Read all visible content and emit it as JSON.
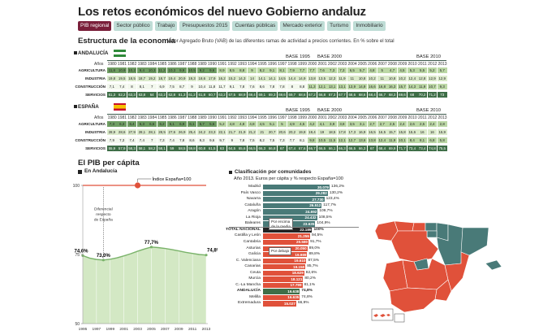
{
  "title": "Los retos económicos del nuevo Gobierno andaluz",
  "tabs": [
    "PIB regional",
    "Sector público",
    "Trabajo",
    "Presupuestos 2015",
    "Cuentas públicas",
    "Mercado exterior",
    "Turismo",
    "Inmobiliario"
  ],
  "active_tab": 0,
  "vab": {
    "title": "Estructura de la economía",
    "subtitle": "Valor Agregado Bruto (VAB) de las diferentes ramas de actividad a precios corrientes. En % sobre el total",
    "years_label": "Años",
    "base_labels": [
      "BASE 1995",
      "BASE 2000",
      "BASE 2010"
    ],
    "years": [
      "1980",
      "1981",
      "1982",
      "1983",
      "1984",
      "1985",
      "1986",
      "1987",
      "1988",
      "1989",
      "1990",
      "1991",
      "1992",
      "1993",
      "1994",
      "1995",
      "1996",
      "1997",
      "1998",
      "1999",
      "2000",
      "2001",
      "2002",
      "2003",
      "2004",
      "2005",
      "2006",
      "2007",
      "2008",
      "2009",
      "2010",
      "2011",
      "2012",
      "2013"
    ],
    "regions": [
      {
        "name": "ANDALUCÍA",
        "rows": [
          {
            "label": "AGRICULTURA",
            "values": [
              "11,8",
              "10,9",
              "10,2",
              "9,4",
              "10,3",
              "11,2",
              "10,3",
              "9,9",
              "10,5",
              "9,2",
              "9,6",
              "8,9",
              "8,5",
              "8,8",
              "9",
              "8,2",
              "9,1",
              "8,1",
              "7,9",
              "7,7",
              "7,7",
              "7,6",
              "7,3",
              "7,3",
              "6,5",
              "5,7",
              "4,8",
              "5",
              "4,7",
              "4,5",
              "5,3",
              "5,5",
              "5,2",
              "5,7"
            ]
          },
          {
            "label": "INDUSTRIA",
            "values": [
              "19,8",
              "19,5",
              "18,5",
              "18,7",
              "19,2",
              "18,7",
              "19,4",
              "20,9",
              "19,3",
              "18,6",
              "17,9",
              "16,2",
              "15,2",
              "14,3",
              "14",
              "14,1",
              "14,1",
              "14,5",
              "14,4",
              "14,9",
              "13,8",
              "13,5",
              "12,3",
              "11,9",
              "11",
              "10,8",
              "10,2",
              "11",
              "10,8",
              "10,2",
              "12,4",
              "12,8",
              "12,9",
              "12,9"
            ]
          },
          {
            "label": "CONSTRUCCIÓN",
            "values": [
              "7,1",
              "7,4",
              "8",
              "8,1",
              "7",
              "6,9",
              "7,5",
              "8,7",
              "9",
              "10,4",
              "11,8",
              "11,7",
              "9,1",
              "7,8",
              "7,6",
              "8,6",
              "7,8",
              "7,8",
              "8",
              "8,8",
              "11,3",
              "12,1",
              "13,1",
              "13,1",
              "13,9",
              "14,9",
              "16,6",
              "16,8",
              "16,3",
              "15,7",
              "14,3",
              "11,9",
              "10,7",
              "9,3"
            ]
          },
          {
            "label": "SERVICIOS",
            "values": [
              "61,3",
              "62,2",
              "63,3",
              "63,8",
              "64",
              "63,2",
              "62,8",
              "61,3",
              "61,2",
              "61,8",
              "60,7",
              "63,2",
              "67,5",
              "68,9",
              "69,4",
              "69,1",
              "69,3",
              "69,6",
              "69,7",
              "68,6",
              "67,2",
              "66,8",
              "67,3",
              "67,7",
              "68,6",
              "68,6",
              "68,4",
              "66,7",
              "68,3",
              "69,6",
              "68",
              "70,2",
              "71,2",
              "73"
            ]
          }
        ]
      },
      {
        "name": "ESPAÑA",
        "rows": [
          {
            "label": "AGRICULTURA",
            "values": [
              "7,3",
              "6,3",
              "6,4",
              "6,3",
              "6,6",
              "6,2",
              "6,1",
              "6,9",
              "6,1",
              "5,7",
              "5,6",
              "5,2",
              "4,8",
              "4,8",
              "4,8",
              "4,5",
              "5,1",
              "5",
              "4,9",
              "4,5",
              "4,2",
              "4,1",
              "3,9",
              "3,8",
              "3,5",
              "3,1",
              "2,7",
              "2,7",
              "2,5",
              "2,4",
              "2,6",
              "2,5",
              "2,4",
              "2,8"
            ]
          },
          {
            "label": "INDUSTRIA",
            "values": [
              "28,9",
              "28,6",
              "27,9",
              "28,1",
              "28,1",
              "28,5",
              "27,6",
              "26,9",
              "25,4",
              "24,2",
              "23,3",
              "22,1",
              "21,7",
              "21,9",
              "21,2",
              "21",
              "20,7",
              "20,6",
              "20,2",
              "19,8",
              "19,4",
              "19",
              "18,5",
              "17,8",
              "17,3",
              "16,9",
              "16,5",
              "16,5",
              "15,7",
              "15,8",
              "15,6",
              "16",
              "16",
              "15,9"
            ]
          },
          {
            "label": "CONSTRUCCIÓN",
            "values": [
              "7,9",
              "7,3",
              "7,4",
              "7,4",
              "7",
              "7,3",
              "7,4",
              "7,8",
              "8,6",
              "9,3",
              "9,6",
              "9,7",
              "9",
              "7,8",
              "7,5",
              "8,2",
              "7,5",
              "7,3",
              "7,7",
              "8,1",
              "9,8",
              "10,5",
              "11,5",
              "12,1",
              "12,7",
              "13,6",
              "13,8",
              "12,4",
              "11,9",
              "10,1",
              "8,4",
              "8,1",
              "6,8",
              "5,8"
            ]
          },
          {
            "label": "SERVICIOS",
            "values": [
              "55,9",
              "57,9",
              "58,3",
              "58,1",
              "58,2",
              "58,1",
              "59",
              "58,5",
              "59,8",
              "60,8",
              "61,5",
              "63",
              "64,5",
              "65,6",
              "66,5",
              "66,3",
              "66,8",
              "67",
              "67,4",
              "67,6",
              "66,7",
              "66,5",
              "66,1",
              "66,3",
              "66,5",
              "66,3",
              "67",
              "68,4",
              "69,9",
              "71,7",
              "73,4",
              "73,4",
              "74,8",
              "75,5"
            ]
          }
        ]
      }
    ]
  },
  "pib": {
    "title": "El PIB per cápita",
    "subtitle": "En Andalucía",
    "legend_index": "Índice España=100",
    "annotation": "Diferencial respecto de España"
  },
  "ccaa": {
    "title": "Clasificación por comunidades",
    "subtitle": "Año 2013. Euros per cápita y % respecto España=100",
    "note_above": "Por encima de la media",
    "note_below": "Por debajo"
  },
  "colors": {
    "tab_active": "#7a1f3a",
    "tab": "#bfddd6",
    "header_bar": "#3d5a4c",
    "dark_green": "#3e6e47",
    "mid_green": "#6f9e63",
    "light_green": "#bcd8a6",
    "pale_green": "#dcebcc",
    "teal": "#497a78",
    "orange_red": "#e0513a",
    "andalucia_bar": "#3e6e47",
    "national_bar": "#222222",
    "pib_area": "#d3e8c4",
    "pib_line": "#7ab36a",
    "pib_ref": "#e0513a"
  },
  "chart_data": [
    {
      "type": "area",
      "title": "El PIB per cápita",
      "subtitle": "En Andalucía",
      "x": [
        1995,
        1996,
        1997,
        1998,
        1999,
        2000,
        2001,
        2002,
        2003,
        2004,
        2005,
        2006,
        2007,
        2008,
        2009,
        2010,
        2011,
        2012,
        2013
      ],
      "values": [
        74.6,
        73.7,
        73.2,
        73.0,
        73.3,
        73.8,
        74.5,
        75.3,
        76.2,
        77.0,
        77.7,
        77.5,
        77.2,
        76.8,
        76.3,
        75.8,
        75.4,
        75.0,
        74.8
      ],
      "point_labels": {
        "1995": "74,6%",
        "1998": "73,0%",
        "2005": "77,7%",
        "2013": "74,8%"
      },
      "reference_line": 100,
      "reference_label": "Índice España=100",
      "ylim": [
        50,
        100
      ],
      "yticks": [
        50,
        75,
        100
      ],
      "xticks": [
        "1995",
        "1997",
        "1999",
        "2001",
        "2003",
        "2005",
        "2007",
        "2009",
        "2011",
        "2013"
      ]
    },
    {
      "type": "bar",
      "orientation": "horizontal",
      "title": "Clasificación por comunidades",
      "subtitle": "Año 2013. Euros per cápita y % respecto España=100",
      "categories": [
        "Madrid",
        "País Vasco",
        "Navarra",
        "Cataluña",
        "Aragón",
        "La Rioja",
        "Baleares",
        "TOTAL NACIONAL",
        "Castilla y León",
        "Cantabria",
        "Asturias",
        "Galicia",
        "C. Valenciana",
        "Canarias",
        "Ceuta",
        "Murcia",
        "C.-La Mancha",
        "ANDALUCÍA",
        "Melilla",
        "Extremadura"
      ],
      "values": [
        30079,
        29282,
        27730,
        26512,
        24692,
        24432,
        23635,
        22189,
        21255,
        20580,
        20050,
        19989,
        19610,
        19150,
        18629,
        18121,
        17799,
        16638,
        16635,
        15027
      ],
      "value_labels": [
        "30.079",
        "29.282",
        "27.730",
        "26.512",
        "24.692",
        "24.432",
        "23.635",
        "22.189",
        "21.255",
        "20.580",
        "20.050",
        "19.989",
        "19.610",
        "19.150",
        "18.629",
        "18.121",
        "17.799",
        "16.638",
        "16.635",
        "15.027"
      ],
      "index_labels": [
        "136,2%",
        "130,2%",
        "123,4%",
        "117,7%",
        "109,7%",
        "108,5%",
        "104,9%",
        "100%",
        "94,5%",
        "91,7%",
        "89,0%",
        "89,8%",
        "87,5%",
        "85,7%",
        "82,6%",
        "80,2%",
        "81,1%",
        "74,8%",
        "74,8%",
        "66,9%"
      ]
    },
    {
      "type": "table",
      "title": "Estructura de la economía",
      "note": "see vab"
    }
  ]
}
